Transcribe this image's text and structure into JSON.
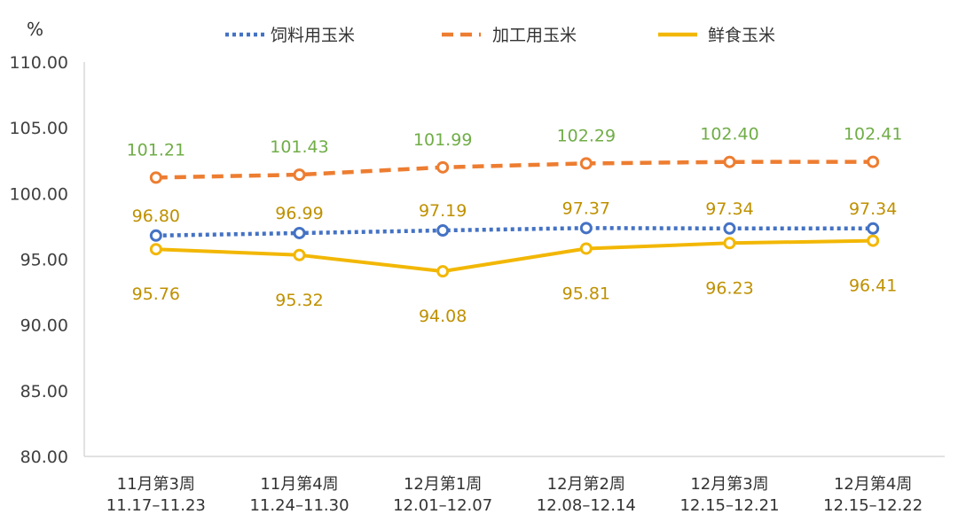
{
  "chart_data": {
    "type": "line",
    "unit": "%",
    "ylim": [
      80,
      110
    ],
    "yticks": [
      "80.00",
      "85.00",
      "90.00",
      "95.00",
      "100.00",
      "105.00",
      "110.00"
    ],
    "categories": [
      [
        "11月第3周",
        "11.17–11.23"
      ],
      [
        "11月第4周",
        "11.24–11.30"
      ],
      [
        "12月第1周",
        "12.01–12.07"
      ],
      [
        "12月第2周",
        "12.08–12.14"
      ],
      [
        "12月第3周",
        "12.15–12.21"
      ],
      [
        "12月第4周",
        "12.15–12.22"
      ]
    ],
    "series": [
      {
        "name": "饲料用玉米",
        "style": "dotted",
        "color": "#4472C4",
        "label_color": "#BF9000",
        "values": [
          96.8,
          96.99,
          97.19,
          97.37,
          97.34,
          97.34
        ],
        "labels": [
          "96.80",
          "96.99",
          "97.19",
          "97.37",
          "97.34",
          "97.34"
        ]
      },
      {
        "name": "加工用玉米",
        "style": "dashed",
        "color": "#ED7D31",
        "label_color": "#70AD47",
        "values": [
          101.21,
          101.43,
          101.99,
          102.29,
          102.4,
          102.41
        ],
        "labels": [
          "101.21",
          "101.43",
          "101.99",
          "102.29",
          "102.40",
          "102.41"
        ]
      },
      {
        "name": "鲜食玉米",
        "style": "solid",
        "color": "#F2B705",
        "label_color": "#BF9000",
        "values": [
          95.76,
          95.32,
          94.08,
          95.81,
          96.23,
          96.41
        ],
        "labels": [
          "95.76",
          "95.32",
          "94.08",
          "95.81",
          "96.23",
          "96.41"
        ]
      }
    ],
    "legend_position": "top",
    "grid": false
  }
}
